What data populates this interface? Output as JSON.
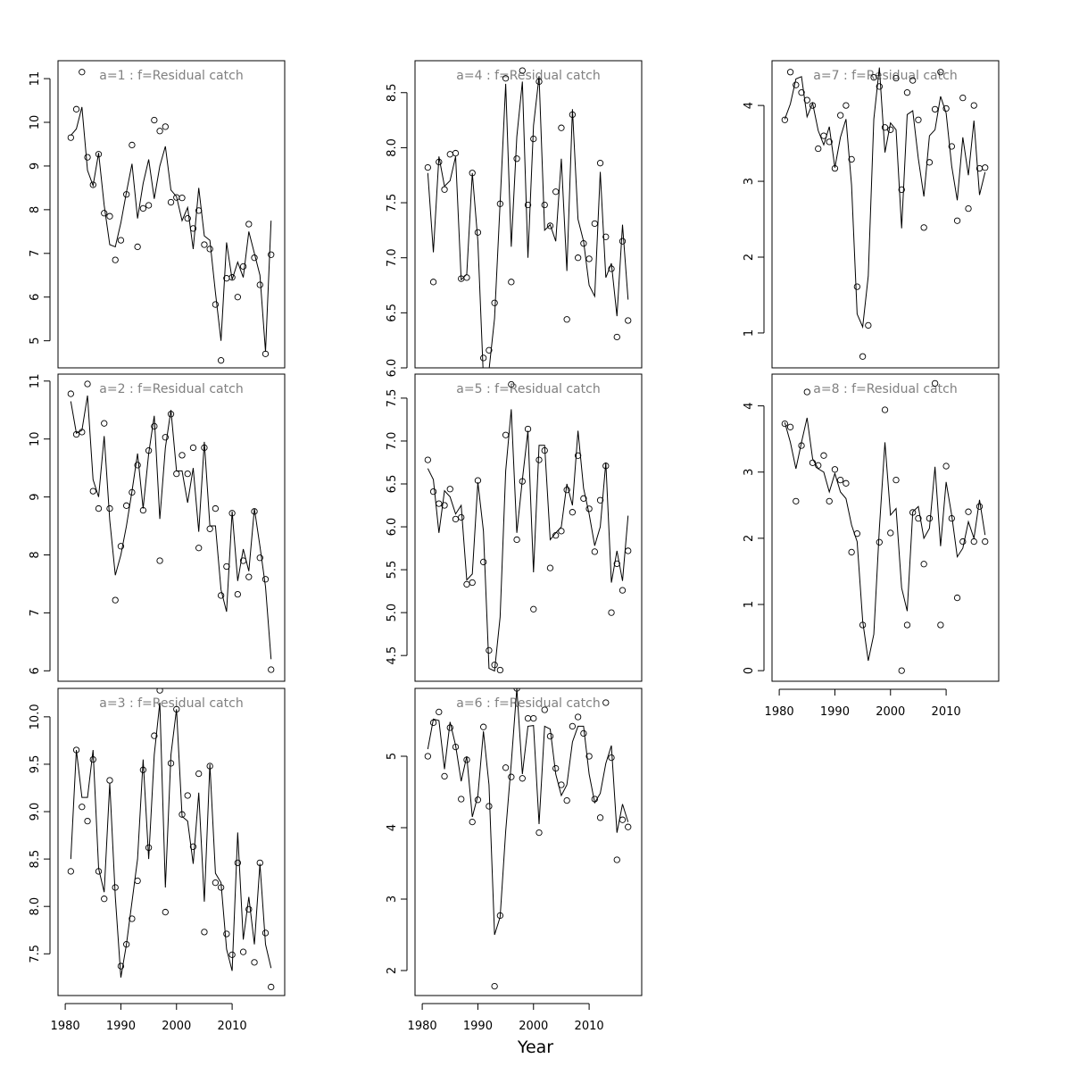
{
  "xlabel": "Year",
  "chart_data": [
    {
      "type": "line",
      "title": "a=1  :  f=Residual catch",
      "x": [
        1981,
        1982,
        1983,
        1984,
        1985,
        1986,
        1987,
        1988,
        1989,
        1990,
        1991,
        1992,
        1993,
        1994,
        1995,
        1996,
        1997,
        1998,
        1999,
        2000,
        2001,
        2002,
        2003,
        2004,
        2005,
        2006,
        2007,
        2008,
        2009,
        2010,
        2011,
        2012,
        2013,
        2014,
        2015,
        2016,
        2017
      ],
      "series": [
        {
          "marker": "circle",
          "color": "#000000",
          "values": [
            9.65,
            10.3,
            11.15,
            9.2,
            8.57,
            9.27,
            7.92,
            7.85,
            6.85,
            7.3,
            8.35,
            9.48,
            7.15,
            8.03,
            8.1,
            10.05,
            9.8,
            9.9,
            8.17,
            8.28,
            8.27,
            7.8,
            7.57,
            7.98,
            7.2,
            7.1,
            5.83,
            4.55,
            6.43,
            6.45,
            6.0,
            6.7,
            7.67,
            6.9,
            6.28,
            4.7,
            6.97
          ]
        },
        {
          "marker": "none",
          "color": "#000000",
          "values": [
            9.7,
            9.85,
            10.35,
            8.9,
            8.55,
            9.3,
            8.1,
            7.2,
            7.15,
            7.7,
            8.4,
            9.05,
            7.8,
            8.6,
            9.15,
            8.25,
            9.0,
            9.45,
            8.45,
            8.3,
            7.75,
            8.05,
            7.1,
            8.5,
            7.4,
            7.3,
            6.1,
            5.0,
            7.25,
            6.4,
            6.8,
            6.45,
            7.5,
            7.0,
            6.5,
            4.75,
            7.75
          ]
        }
      ],
      "xlim": [
        1978.7,
        2019.45
      ],
      "ylim": [
        4.38,
        11.41
      ],
      "yticks": [
        5,
        6,
        7,
        8,
        9,
        10,
        11
      ]
    },
    {
      "type": "line",
      "title": "a=2  :  f=Residual catch",
      "x": [
        1981,
        1982,
        1983,
        1984,
        1985,
        1986,
        1987,
        1988,
        1989,
        1990,
        1991,
        1992,
        1993,
        1994,
        1995,
        1996,
        1997,
        1998,
        1999,
        2000,
        2001,
        2002,
        2003,
        2004,
        2005,
        2006,
        2007,
        2008,
        2009,
        2010,
        2011,
        2012,
        2013,
        2014,
        2015,
        2016,
        2017
      ],
      "series": [
        {
          "marker": "circle",
          "color": "#000000",
          "values": [
            10.78,
            10.08,
            10.12,
            10.95,
            9.1,
            8.8,
            10.27,
            8.8,
            7.22,
            8.15,
            8.85,
            9.08,
            9.55,
            8.77,
            9.8,
            10.22,
            7.9,
            10.03,
            10.43,
            9.4,
            9.72,
            9.4,
            9.85,
            8.12,
            9.85,
            8.45,
            8.8,
            7.3,
            7.8,
            8.72,
            7.32,
            7.9,
            7.62,
            8.75,
            7.95,
            7.58,
            6.02
          ]
        },
        {
          "marker": "none",
          "color": "#000000",
          "values": [
            10.65,
            10.1,
            10.15,
            10.75,
            9.3,
            9.0,
            10.05,
            8.6,
            7.65,
            8.0,
            8.5,
            9.1,
            9.75,
            8.8,
            9.75,
            10.4,
            8.62,
            9.85,
            10.5,
            9.45,
            9.45,
            8.9,
            9.5,
            8.4,
            9.95,
            8.5,
            8.5,
            7.4,
            7.02,
            8.75,
            7.55,
            8.1,
            7.72,
            8.8,
            8.15,
            7.45,
            6.2
          ]
        }
      ],
      "xlim": [
        1978.7,
        2019.45
      ],
      "ylim": [
        5.82,
        11.12
      ],
      "yticks": [
        6,
        7,
        8,
        9,
        10,
        11
      ]
    },
    {
      "type": "line",
      "title": "a=3  :  f=Residual catch",
      "x": [
        1981,
        1982,
        1983,
        1984,
        1985,
        1986,
        1987,
        1988,
        1989,
        1990,
        1991,
        1992,
        1993,
        1994,
        1995,
        1996,
        1997,
        1998,
        1999,
        2000,
        2001,
        2002,
        2003,
        2004,
        2005,
        2006,
        2007,
        2008,
        2009,
        2010,
        2011,
        2012,
        2013,
        2014,
        2015,
        2016,
        2017
      ],
      "series": [
        {
          "marker": "circle",
          "color": "#000000",
          "values": [
            8.37,
            9.65,
            9.05,
            8.9,
            9.55,
            8.37,
            8.08,
            9.33,
            8.2,
            7.37,
            7.6,
            7.87,
            8.27,
            9.44,
            8.62,
            9.8,
            10.28,
            7.94,
            9.51,
            10.08,
            8.97,
            9.17,
            8.63,
            9.4,
            7.73,
            9.48,
            8.25,
            8.2,
            7.71,
            7.49,
            8.46,
            7.52,
            7.97,
            7.41,
            8.46,
            7.72,
            7.15
          ]
        },
        {
          "marker": "none",
          "color": "#000000",
          "values": [
            8.5,
            9.65,
            9.15,
            9.15,
            9.65,
            8.4,
            8.15,
            9.3,
            8.1,
            7.25,
            7.6,
            8.05,
            8.5,
            9.55,
            8.5,
            9.6,
            10.15,
            8.2,
            9.6,
            10.08,
            8.95,
            8.9,
            8.45,
            9.2,
            8.05,
            9.5,
            8.35,
            8.25,
            7.55,
            7.32,
            8.78,
            7.65,
            8.1,
            7.6,
            8.45,
            7.6,
            7.35
          ]
        }
      ],
      "xlim": [
        1978.7,
        2019.45
      ],
      "ylim": [
        7.06,
        10.3
      ],
      "yticks": [
        7.5,
        {
          "value": 8,
          "label": "8.0"
        },
        8.5,
        {
          "value": 9,
          "label": "9.0"
        },
        9.5,
        {
          "value": 10,
          "label": "10.0"
        }
      ],
      "xticks": [
        1980,
        1990,
        2000,
        2010
      ]
    },
    {
      "type": "line",
      "title": "a=4  :  f=Residual catch",
      "x": [
        1981,
        1982,
        1983,
        1984,
        1985,
        1986,
        1987,
        1988,
        1989,
        1990,
        1991,
        1992,
        1993,
        1994,
        1995,
        1996,
        1997,
        1998,
        1999,
        2000,
        2001,
        2002,
        2003,
        2004,
        2005,
        2006,
        2007,
        2008,
        2009,
        2010,
        2011,
        2012,
        2013,
        2014,
        2015,
        2016,
        2017
      ],
      "series": [
        {
          "marker": "circle",
          "color": "#000000",
          "values": [
            7.82,
            6.78,
            7.87,
            7.62,
            7.94,
            7.95,
            6.81,
            6.82,
            7.77,
            7.23,
            6.09,
            6.16,
            6.59,
            7.49,
            8.63,
            6.78,
            7.9,
            8.7,
            7.48,
            8.08,
            8.6,
            7.48,
            7.29,
            7.6,
            8.18,
            6.44,
            8.3,
            7.0,
            7.13,
            6.99,
            7.31,
            7.86,
            7.19,
            6.9,
            6.28,
            7.15,
            6.43
          ]
        },
        {
          "marker": "none",
          "color": "#000000",
          "values": [
            7.77,
            7.05,
            7.92,
            7.65,
            7.7,
            7.92,
            6.8,
            6.85,
            7.77,
            7.15,
            5.9,
            5.98,
            6.45,
            7.5,
            8.58,
            7.1,
            8.1,
            8.6,
            7.0,
            8.2,
            8.65,
            7.25,
            7.3,
            7.15,
            7.9,
            6.88,
            8.35,
            7.35,
            7.15,
            6.75,
            6.65,
            7.78,
            6.82,
            6.95,
            6.47,
            7.3,
            6.62
          ]
        }
      ],
      "xlim": [
        1978.7,
        2019.45
      ],
      "ylim": [
        6.0,
        8.79
      ],
      "yticks": [
        {
          "value": 6,
          "label": "6.0"
        },
        6.5,
        {
          "value": 7,
          "label": "7.0"
        },
        7.5,
        {
          "value": 8,
          "label": "8.0"
        },
        8.5
      ]
    },
    {
      "type": "line",
      "title": "a=5  :  f=Residual catch",
      "x": [
        1981,
        1982,
        1983,
        1984,
        1985,
        1986,
        1987,
        1988,
        1989,
        1990,
        1991,
        1992,
        1993,
        1994,
        1995,
        1996,
        1997,
        1998,
        1999,
        2000,
        2001,
        2002,
        2003,
        2004,
        2005,
        2006,
        2007,
        2008,
        2009,
        2010,
        2011,
        2012,
        2013,
        2014,
        2015,
        2016,
        2017
      ],
      "series": [
        {
          "marker": "circle",
          "color": "#000000",
          "values": [
            6.78,
            6.41,
            6.27,
            6.25,
            6.44,
            6.09,
            6.11,
            5.33,
            5.35,
            6.54,
            5.59,
            4.56,
            4.39,
            4.33,
            7.07,
            7.66,
            5.85,
            6.53,
            7.14,
            5.04,
            6.78,
            6.89,
            5.52,
            5.9,
            5.95,
            6.43,
            6.17,
            6.83,
            6.33,
            6.21,
            5.71,
            6.31,
            6.71,
            5.0,
            5.57,
            5.26,
            5.72
          ]
        },
        {
          "marker": "none",
          "color": "#000000",
          "values": [
            6.68,
            6.55,
            5.93,
            6.42,
            6.35,
            6.15,
            6.25,
            5.38,
            5.45,
            6.52,
            5.95,
            4.35,
            4.32,
            4.95,
            6.65,
            7.37,
            5.93,
            6.55,
            7.12,
            5.47,
            6.95,
            6.95,
            5.85,
            5.93,
            6.0,
            6.5,
            6.25,
            7.12,
            6.45,
            6.15,
            5.78,
            6.0,
            6.75,
            5.35,
            5.72,
            5.37,
            6.13
          ]
        }
      ],
      "xlim": [
        1978.7,
        2019.45
      ],
      "ylim": [
        4.2,
        7.78
      ],
      "yticks": [
        4.5,
        {
          "value": 5,
          "label": "5.0"
        },
        5.5,
        {
          "value": 6,
          "label": "6.0"
        },
        6.5,
        {
          "value": 7,
          "label": "7.0"
        },
        7.5
      ]
    },
    {
      "type": "line",
      "title": "a=6  :  f=Residual catch",
      "x": [
        1981,
        1982,
        1983,
        1984,
        1985,
        1986,
        1987,
        1988,
        1989,
        1990,
        1991,
        1992,
        1993,
        1994,
        1995,
        1996,
        1997,
        1998,
        1999,
        2000,
        2001,
        2002,
        2003,
        2004,
        2005,
        2006,
        2007,
        2008,
        2009,
        2010,
        2011,
        2012,
        2013,
        2014,
        2015,
        2016,
        2017
      ],
      "series": [
        {
          "marker": "circle",
          "color": "#000000",
          "values": [
            5.0,
            5.47,
            5.62,
            4.72,
            5.4,
            5.13,
            4.4,
            4.95,
            4.08,
            4.39,
            5.41,
            4.3,
            1.78,
            2.77,
            4.84,
            4.71,
            5.95,
            4.69,
            5.53,
            5.53,
            3.93,
            5.65,
            5.28,
            4.83,
            4.6,
            4.38,
            5.42,
            5.55,
            5.32,
            5.0,
            4.4,
            4.14,
            5.75,
            4.98,
            3.55,
            4.11,
            4.01
          ]
        },
        {
          "marker": "none",
          "color": "#000000",
          "values": [
            5.1,
            5.52,
            5.5,
            4.82,
            5.48,
            5.15,
            4.65,
            5.0,
            4.15,
            4.45,
            5.35,
            4.6,
            2.5,
            2.75,
            3.95,
            4.9,
            5.95,
            4.75,
            5.42,
            5.43,
            4.05,
            5.42,
            5.38,
            4.75,
            4.45,
            4.6,
            5.2,
            5.42,
            5.42,
            4.75,
            4.35,
            4.48,
            4.9,
            5.15,
            3.93,
            4.33,
            4.08
          ]
        }
      ],
      "xlim": [
        1978.7,
        2019.45
      ],
      "ylim": [
        1.65,
        5.95
      ],
      "yticks": [
        2,
        3,
        4,
        5
      ],
      "xticks": [
        1980,
        1990,
        2000,
        2010
      ]
    },
    {
      "type": "line",
      "title": "a=7  :  f=Residual catch",
      "x": [
        1981,
        1982,
        1983,
        1984,
        1985,
        1986,
        1987,
        1988,
        1989,
        1990,
        1991,
        1992,
        1993,
        1994,
        1995,
        1996,
        1997,
        1998,
        1999,
        2000,
        2001,
        2002,
        2003,
        2004,
        2005,
        2006,
        2007,
        2008,
        2009,
        2010,
        2011,
        2012,
        2013,
        2014,
        2015,
        2016,
        2017
      ],
      "series": [
        {
          "marker": "circle",
          "color": "#000000",
          "values": [
            3.81,
            4.44,
            4.27,
            4.17,
            4.07,
            4.0,
            3.43,
            3.6,
            3.52,
            3.17,
            3.87,
            4.0,
            3.29,
            1.61,
            0.69,
            1.1,
            4.37,
            4.25,
            3.71,
            3.68,
            4.36,
            2.89,
            4.17,
            4.33,
            3.81,
            2.39,
            3.25,
            3.95,
            4.44,
            3.96,
            3.46,
            2.48,
            4.1,
            2.64,
            4.0,
            3.17,
            3.18
          ]
        },
        {
          "marker": "none",
          "color": "#000000",
          "values": [
            3.82,
            4.02,
            4.35,
            4.38,
            3.85,
            4.03,
            3.67,
            3.48,
            3.72,
            3.18,
            3.58,
            3.82,
            2.95,
            1.25,
            1.08,
            1.75,
            3.82,
            4.5,
            3.38,
            3.77,
            3.68,
            2.38,
            3.88,
            3.93,
            3.3,
            2.8,
            3.6,
            3.68,
            4.12,
            3.9,
            3.2,
            2.75,
            3.58,
            3.08,
            3.8,
            2.82,
            3.12
          ]
        }
      ],
      "xlim": [
        1978.7,
        2019.45
      ],
      "ylim": [
        0.54,
        4.59
      ],
      "yticks": [
        1,
        2,
        3,
        4
      ]
    },
    {
      "type": "line",
      "title": "a=8  :  f=Residual catch",
      "x": [
        1981,
        1982,
        1983,
        1984,
        1985,
        1986,
        1987,
        1988,
        1989,
        1990,
        1991,
        1992,
        1993,
        1994,
        1995,
        1996,
        1997,
        1998,
        1999,
        2000,
        2001,
        2002,
        2003,
        2004,
        2005,
        2006,
        2007,
        2008,
        2009,
        2010,
        2011,
        2012,
        2013,
        2014,
        2015,
        2016,
        2017
      ],
      "series": [
        {
          "marker": "circle",
          "color": "#000000",
          "values": [
            3.73,
            3.68,
            2.56,
            3.4,
            4.21,
            3.14,
            3.1,
            3.25,
            2.56,
            3.04,
            2.88,
            2.83,
            1.79,
            2.07,
            0.69,
            null,
            null,
            1.94,
            3.94,
            2.08,
            2.88,
            0.0,
            0.69,
            2.39,
            2.3,
            1.61,
            2.3,
            4.34,
            0.69,
            3.09,
            2.3,
            1.1,
            1.95,
            2.4,
            1.95,
            2.48,
            1.95
          ]
        },
        {
          "marker": "none",
          "color": "#000000",
          "values": [
            3.75,
            3.45,
            3.05,
            3.45,
            3.82,
            3.2,
            3.05,
            3.0,
            2.7,
            2.98,
            2.7,
            2.6,
            2.2,
            1.95,
            0.75,
            0.15,
            0.55,
            2.15,
            3.45,
            2.35,
            2.45,
            1.25,
            0.9,
            2.4,
            2.48,
            2.0,
            2.15,
            3.08,
            1.88,
            2.85,
            2.35,
            1.72,
            1.85,
            2.25,
            2.0,
            2.58,
            2.05
          ]
        }
      ],
      "xlim": [
        1978.7,
        2019.45
      ],
      "ylim": [
        -0.16,
        4.48
      ],
      "yticks": [
        0,
        1,
        2,
        3,
        4
      ],
      "xticks": [
        1980,
        1990,
        2000,
        2010
      ]
    }
  ]
}
